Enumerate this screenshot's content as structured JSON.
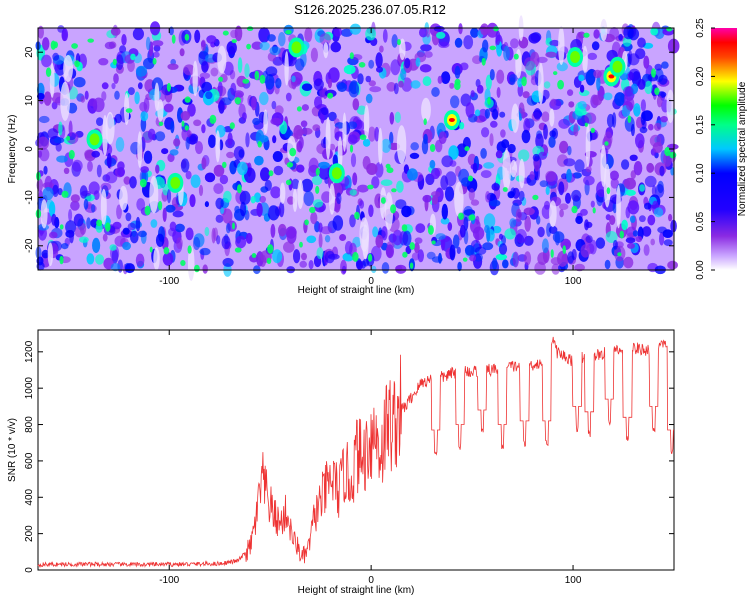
{
  "title": "S126.2025.236.07.05.R12",
  "chart_data": [
    {
      "type": "heatmap",
      "xlabel": "Height of straight line (km)",
      "ylabel": "Frequency (Hz)",
      "xlim": [
        -165,
        150
      ],
      "ylim": [
        -25,
        25
      ],
      "xticks": [
        -100,
        0,
        100
      ],
      "yticks": [
        -20,
        -10,
        0,
        10,
        20
      ],
      "colorbar": {
        "label": "Normalized spectral amplitude",
        "range": [
          0,
          0.25
        ],
        "ticks": [
          "0.00",
          "0.05",
          "0.10",
          "0.15",
          "0.20",
          "0.25"
        ],
        "colors": [
          "#ffffff",
          "#8b2be2",
          "#0000ff",
          "#00ffff",
          "#00ff00",
          "#ffff00",
          "#ff0000",
          "#ff00aa"
        ]
      },
      "hotspots": [
        {
          "x": 40,
          "y": 6,
          "value": 0.24
        },
        {
          "x": 119,
          "y": 15,
          "value": 0.22
        },
        {
          "x": 122,
          "y": 17,
          "value": 0.18
        },
        {
          "x": -37,
          "y": 21,
          "value": 0.15
        },
        {
          "x": -17,
          "y": -5,
          "value": 0.16
        },
        {
          "x": -97,
          "y": -7,
          "value": 0.13
        },
        {
          "x": -137,
          "y": 2,
          "value": 0.12
        },
        {
          "x": 101,
          "y": 19,
          "value": 0.13
        }
      ]
    },
    {
      "type": "line",
      "xlabel": "Height of straight line (km)",
      "ylabel": "SNR (10 * v/v)",
      "xlim": [
        -165,
        150
      ],
      "ylim": [
        0,
        1320
      ],
      "xticks": [
        -100,
        0,
        100
      ],
      "yticks": [
        0,
        200,
        400,
        600,
        800,
        1000,
        1200
      ],
      "color": "#ee3333",
      "series": [
        {
          "x": [
            -165,
            -140,
            -115,
            -90,
            -75,
            -66,
            -60,
            -57,
            -54,
            -51,
            -48,
            -45,
            -42,
            -39,
            -36,
            -34,
            -31,
            -28,
            -25,
            -22,
            -19,
            -16,
            -13,
            -10,
            -7,
            -4,
            -1,
            2,
            5,
            8,
            11,
            14,
            17,
            20,
            25,
            30,
            35,
            40,
            45,
            50,
            55,
            60,
            65,
            70,
            75,
            80,
            85,
            88,
            90,
            92,
            95,
            100,
            105,
            110,
            115,
            120,
            125,
            130,
            135,
            140,
            145,
            150
          ],
          "y": [
            30,
            32,
            30,
            32,
            35,
            50,
            120,
            280,
            500,
            380,
            300,
            250,
            320,
            180,
            120,
            60,
            120,
            300,
            380,
            450,
            500,
            420,
            550,
            480,
            650,
            600,
            720,
            750,
            650,
            820,
            800,
            880,
            900,
            950,
            1030,
            1050,
            1060,
            1080,
            1100,
            1090,
            1100,
            1100,
            1110,
            1120,
            1120,
            1130,
            1140,
            1250,
            1280,
            1200,
            1180,
            1150,
            1170,
            1180,
            1190,
            1200,
            1210,
            1220,
            1210,
            1220,
            1230,
            1230
          ]
        }
      ],
      "dips": [
        {
          "x": 32,
          "y": 650
        },
        {
          "x": 44,
          "y": 680
        },
        {
          "x": 55,
          "y": 760
        },
        {
          "x": 65,
          "y": 680
        },
        {
          "x": 76,
          "y": 700
        },
        {
          "x": 87,
          "y": 700
        },
        {
          "x": 102,
          "y": 780
        },
        {
          "x": 108,
          "y": 750
        },
        {
          "x": 118,
          "y": 820
        },
        {
          "x": 127,
          "y": 720
        },
        {
          "x": 140,
          "y": 780
        },
        {
          "x": 149,
          "y": 650
        }
      ]
    }
  ]
}
